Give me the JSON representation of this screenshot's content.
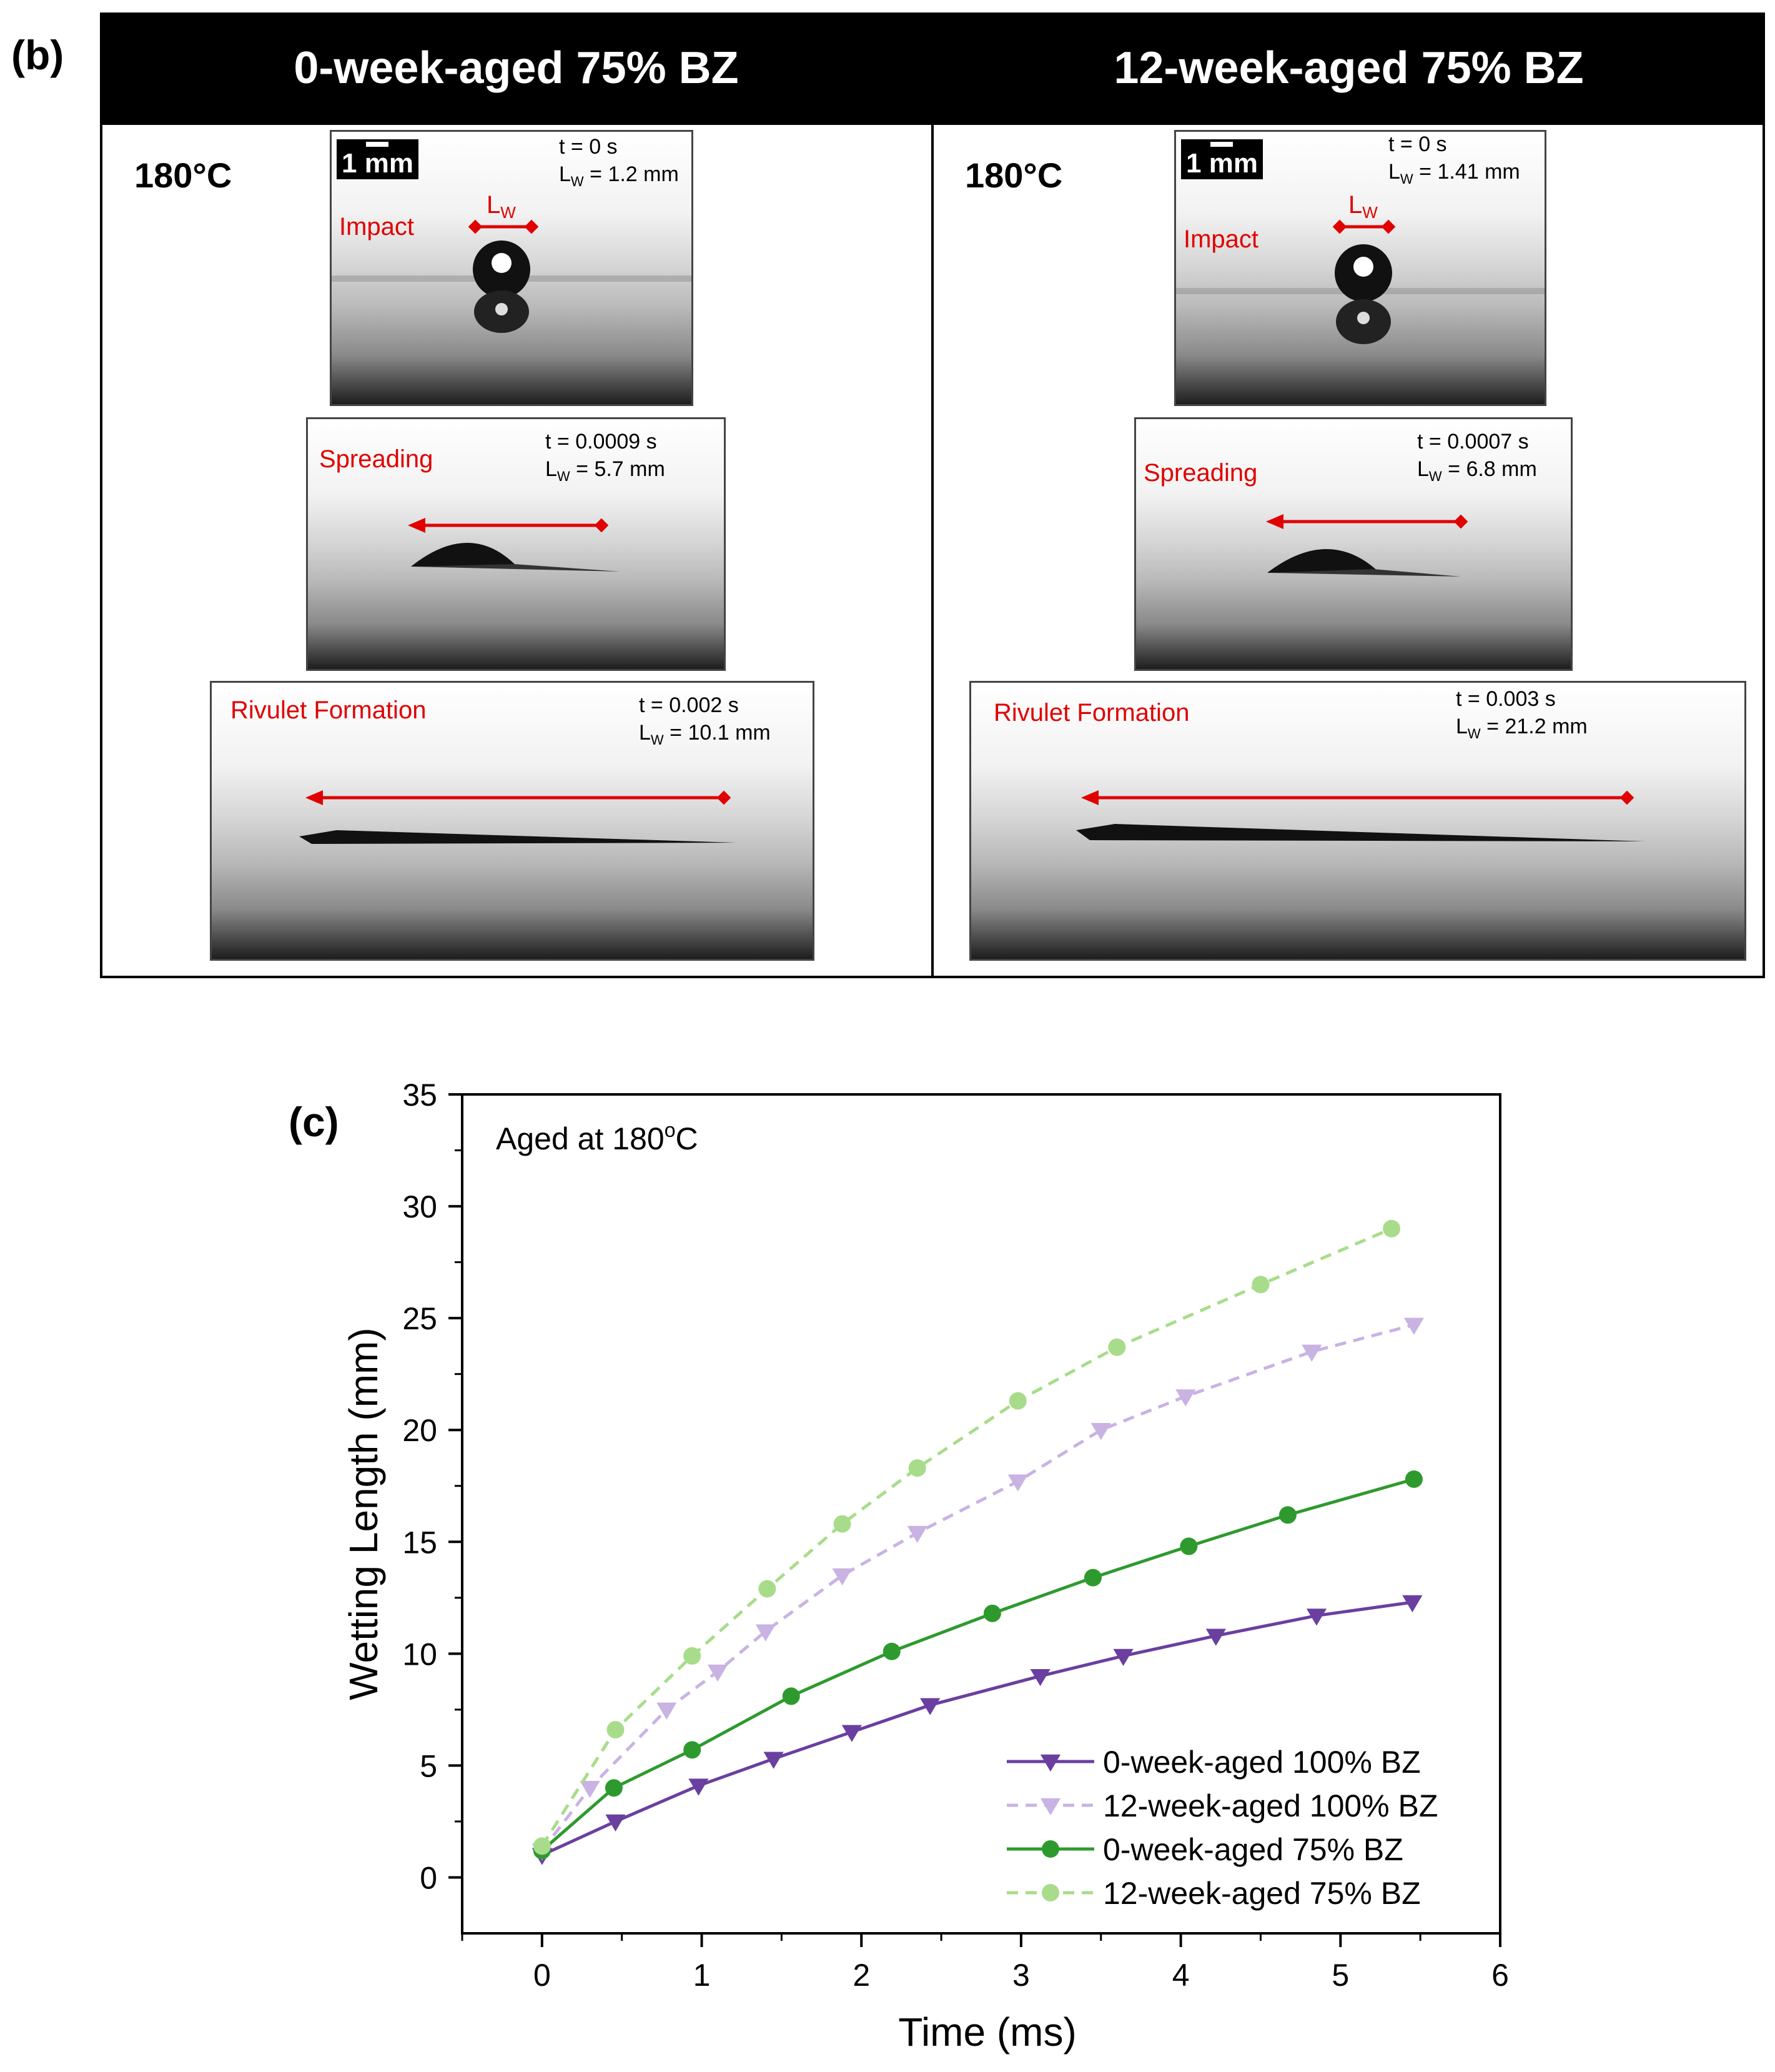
{
  "panel_b": {
    "label": "(b)",
    "columns": [
      {
        "title": "0-week-aged 75% BZ",
        "temperature": "180°C",
        "scale_label": "1 mm",
        "stages": [
          {
            "name": "Impact",
            "time": "t = 0 s",
            "lw_value": "= 1.2 mm",
            "marker_label": "L"
          },
          {
            "name": "Spreading",
            "time": "t = 0.0009 s",
            "lw_value": "= 5.7 mm"
          },
          {
            "name": "Rivulet Formation",
            "time": "t = 0.002 s",
            "lw_value": "= 10.1 mm"
          }
        ]
      },
      {
        "title": "12-week-aged 75% BZ",
        "temperature": "180°C",
        "scale_label": "1 mm",
        "stages": [
          {
            "name": "Impact",
            "time": "t = 0 s",
            "lw_value": "= 1.41 mm",
            "marker_label": "L"
          },
          {
            "name": "Spreading",
            "time": "t = 0.0007 s",
            "lw_value": "= 6.8 mm"
          },
          {
            "name": "Rivulet Formation",
            "time": "t = 0.003 s",
            "lw_value": "= 21.2 mm"
          }
        ]
      }
    ],
    "lw_symbol": "L",
    "lw_subscript": "W"
  },
  "colors": {
    "purple_solid": "#6a3fa0",
    "purple_light": "#c9b3e3",
    "green_solid": "#2e9a2e",
    "green_light": "#a8dc8a",
    "annotation_red": "#e00000"
  },
  "chart_data": {
    "type": "line",
    "panel_label": "(c)",
    "annotation": "Aged at 180",
    "annotation_unit": "C",
    "annotation_degree": "o",
    "xlabel": "Time (ms)",
    "ylabel": "Wetting Length (mm)",
    "xlim": [
      -0.5,
      6
    ],
    "ylim": [
      -2.5,
      35
    ],
    "xticks": [
      0,
      1,
      2,
      3,
      4,
      5,
      6
    ],
    "yticks": [
      0,
      5,
      10,
      15,
      20,
      25,
      30,
      35
    ],
    "grid": false,
    "legend_position": "bottom-right",
    "series": [
      {
        "name": "0-week-aged 100% BZ",
        "marker": "triangle-down",
        "dashed": false,
        "color": "#6a3fa0",
        "x": [
          0,
          0.46,
          0.98,
          1.45,
          1.94,
          2.43,
          3.12,
          3.64,
          4.22,
          4.85,
          5.45
        ],
        "y": [
          1.0,
          2.5,
          4.1,
          5.3,
          6.5,
          7.7,
          9.0,
          9.9,
          10.8,
          11.7,
          12.3
        ]
      },
      {
        "name": "12-week-aged 100% BZ",
        "marker": "triangle-down",
        "dashed": true,
        "color": "#c9b3e3",
        "x": [
          0,
          0.3,
          0.78,
          1.1,
          1.4,
          1.88,
          2.35,
          2.98,
          3.5,
          4.03,
          4.82,
          5.46
        ],
        "y": [
          1.2,
          4.0,
          7.5,
          9.2,
          11.0,
          13.5,
          15.4,
          17.7,
          20.0,
          21.5,
          23.5,
          24.7
        ]
      },
      {
        "name": "0-week-aged 75% BZ",
        "marker": "circle",
        "dashed": false,
        "color": "#2e9a2e",
        "x": [
          0,
          0.45,
          0.94,
          1.56,
          2.19,
          2.82,
          3.45,
          4.05,
          4.67,
          5.46
        ],
        "y": [
          1.2,
          4.0,
          5.7,
          8.1,
          10.1,
          11.8,
          13.4,
          14.8,
          16.2,
          17.8
        ]
      },
      {
        "name": "12-week-aged 75% BZ",
        "marker": "circle",
        "dashed": true,
        "color": "#a8dc8a",
        "x": [
          0,
          0.46,
          0.94,
          1.41,
          1.88,
          2.35,
          2.98,
          3.6,
          4.5,
          5.32
        ],
        "y": [
          1.4,
          6.6,
          9.9,
          12.9,
          15.8,
          18.3,
          21.3,
          23.7,
          26.5,
          29.0
        ]
      }
    ]
  }
}
